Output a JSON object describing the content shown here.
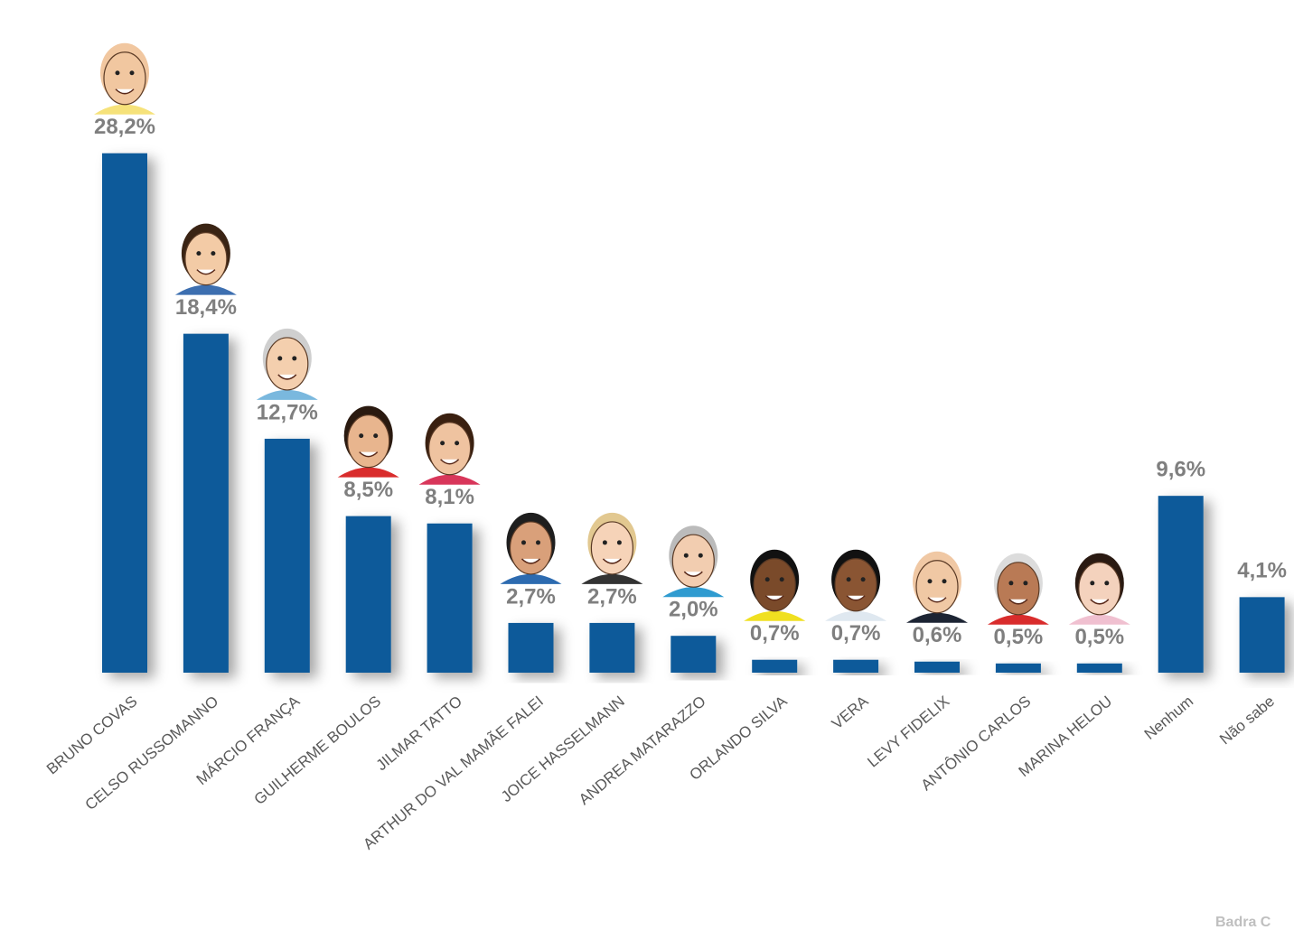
{
  "chart_data": {
    "type": "bar",
    "categories": [
      "BRUNO COVAS",
      "CELSO RUSSOMANNO",
      "MÁRCIO FRANÇA",
      "GUILHERME BOULOS",
      "JILMAR TATTO",
      "ARTHUR DO VAL MAMÃE FALEI",
      "JOICE HASSELMANN",
      "ANDREA MATARAZZO",
      "ORLANDO SILVA",
      "VERA",
      "LEVY FIDELIX",
      "ANTÔNIO CARLOS",
      "MARINA HELOU",
      "Nenhum",
      "Não sabe"
    ],
    "values": [
      28.2,
      18.4,
      12.7,
      8.5,
      8.1,
      2.7,
      2.7,
      2.0,
      0.7,
      0.7,
      0.6,
      0.5,
      0.5,
      9.6,
      4.1
    ],
    "value_labels": [
      "28,2%",
      "18,4%",
      "12,7%",
      "8,5%",
      "8,1%",
      "2,7%",
      "2,7%",
      "2,0%",
      "0,7%",
      "0,7%",
      "0,6%",
      "0,5%",
      "0,5%",
      "9,6%",
      "4,1%"
    ],
    "color": "#0e5a9a",
    "watermark": "Badra C"
  }
}
